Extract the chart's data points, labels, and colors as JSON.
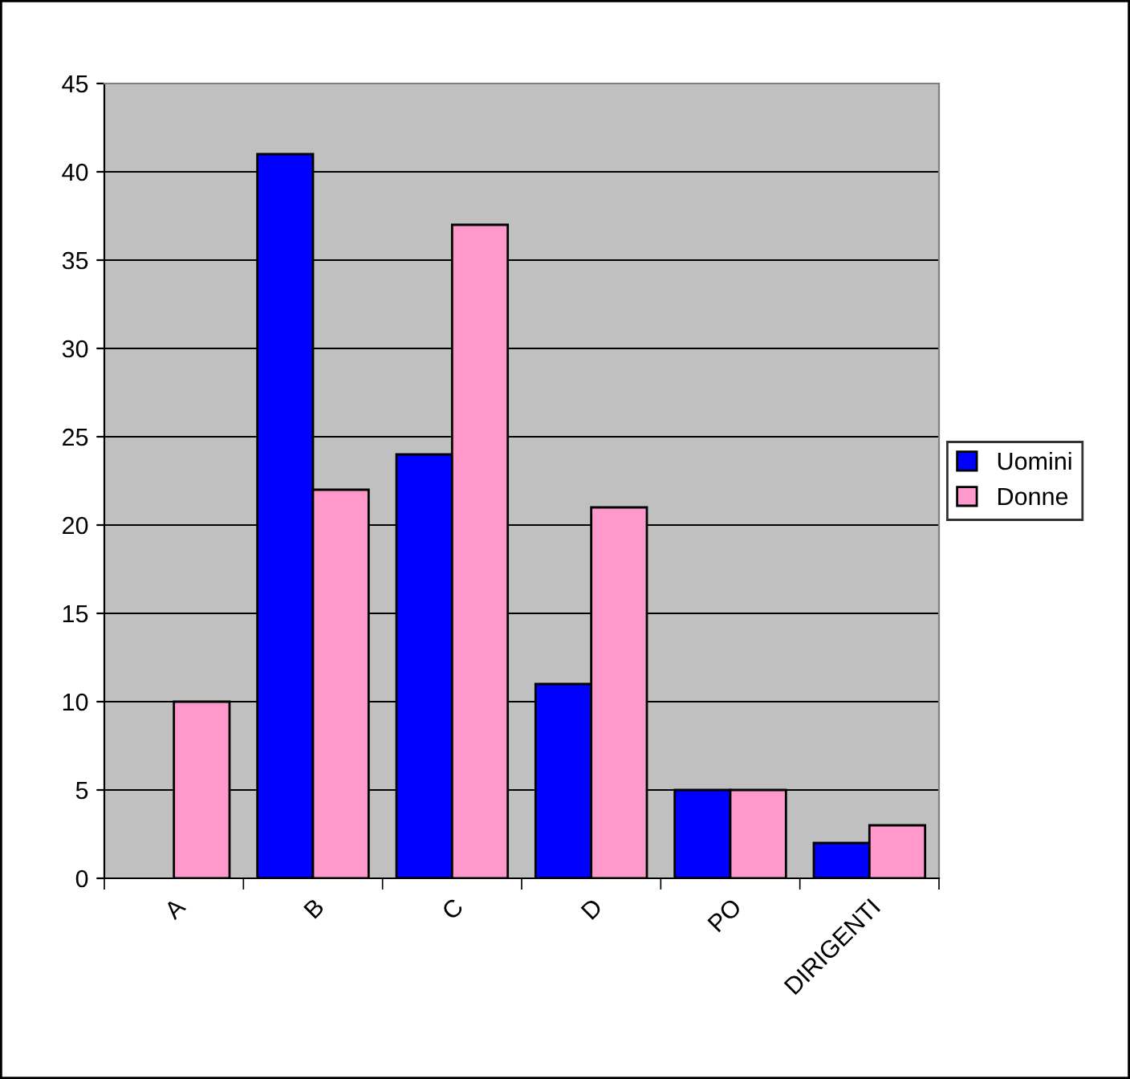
{
  "chart_data": {
    "type": "bar",
    "categories": [
      "A",
      "B",
      "C",
      "D",
      "PO",
      "DIRIGENTI"
    ],
    "series": [
      {
        "name": "Uomini",
        "color": "#0000ff",
        "values": [
          null,
          41,
          24,
          11,
          5,
          2
        ]
      },
      {
        "name": "Donne",
        "color": "#ff99cc",
        "values": [
          10,
          22,
          37,
          21,
          5,
          3
        ]
      }
    ],
    "ylim": [
      0,
      45
    ],
    "yticks": [
      0,
      5,
      10,
      15,
      20,
      25,
      30,
      35,
      40,
      45
    ],
    "grid": "y",
    "legend": "right"
  }
}
